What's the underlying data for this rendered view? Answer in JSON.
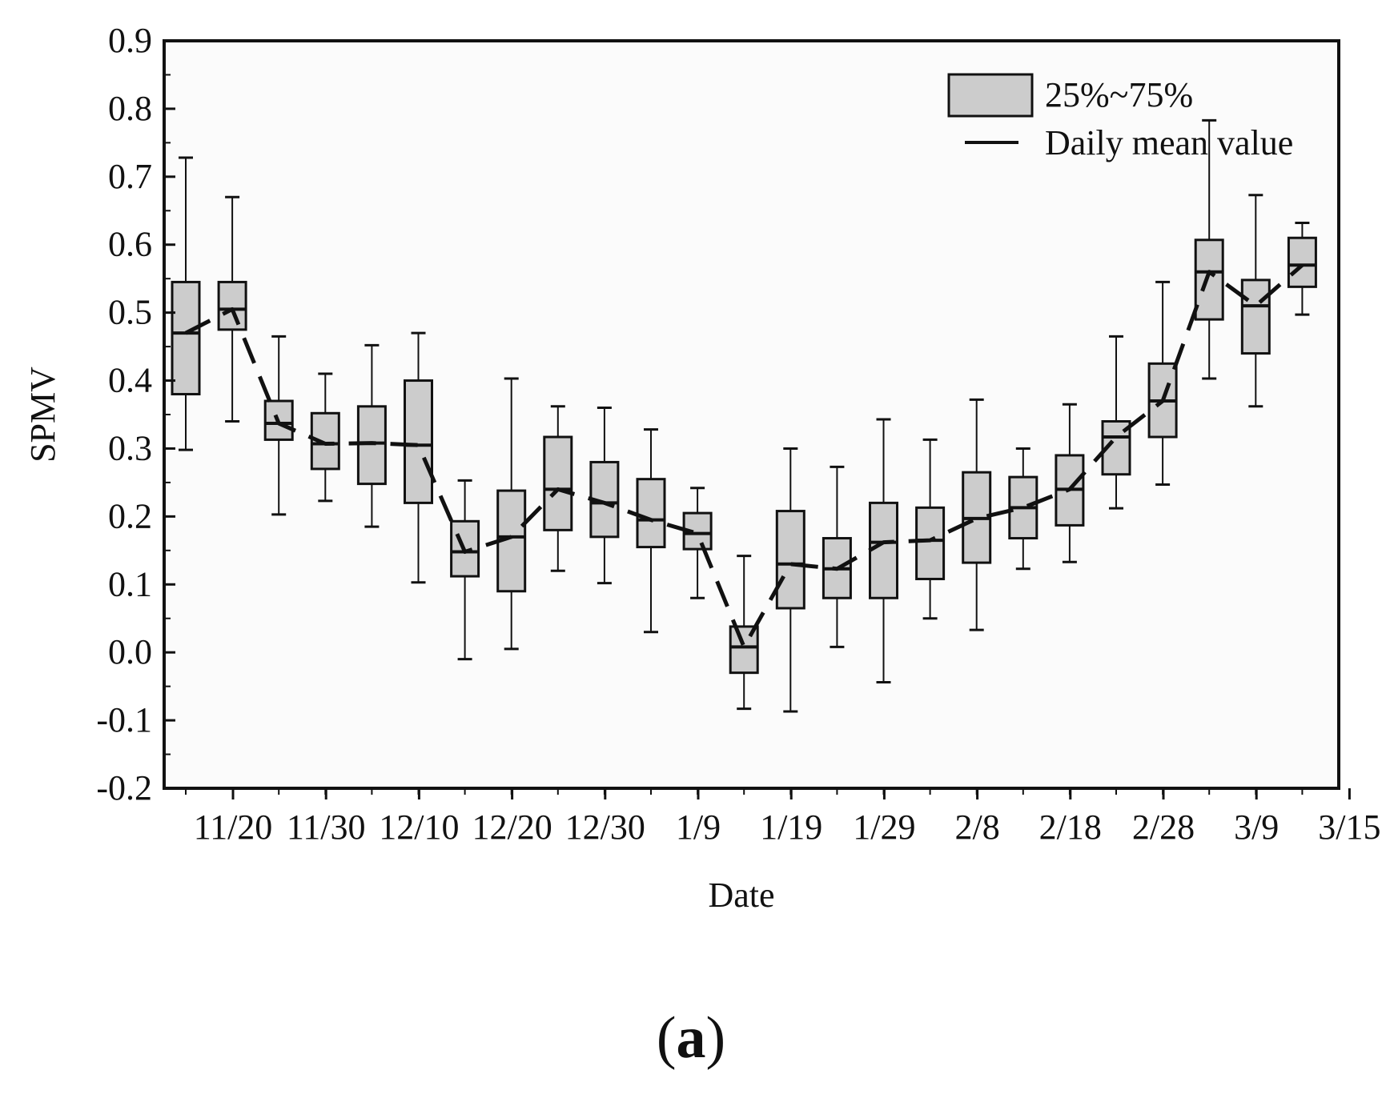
{
  "chart_data": {
    "type": "box",
    "xlabel": "Date",
    "ylabel": "SPMV",
    "ylim": [
      -0.2,
      0.9
    ],
    "yticks": [
      "0.9",
      "0.8",
      "0.7",
      "0.6",
      "0.5",
      "0.4",
      "0.3",
      "0.2",
      "0.1",
      "0.0",
      "-0.1",
      "-0.2"
    ],
    "xticks": [
      "11/20",
      "11/30",
      "12/10",
      "12/20",
      "12/30",
      "1/9",
      "1/19",
      "1/29",
      "2/8",
      "2/18",
      "2/28",
      "3/9",
      "3/15"
    ],
    "legend": {
      "box_label": "25%~75%",
      "line_label": "Daily mean value",
      "position": "top-right"
    },
    "boxes": [
      {
        "index": 0,
        "min": 0.298,
        "q1": 0.38,
        "q3": 0.545,
        "max": 0.728,
        "mean": 0.47
      },
      {
        "index": 1,
        "min": 0.34,
        "q1": 0.475,
        "q3": 0.545,
        "max": 0.67,
        "mean": 0.505
      },
      {
        "index": 2,
        "min": 0.203,
        "q1": 0.313,
        "q3": 0.37,
        "max": 0.465,
        "mean": 0.337
      },
      {
        "index": 3,
        "min": 0.223,
        "q1": 0.27,
        "q3": 0.352,
        "max": 0.41,
        "mean": 0.307
      },
      {
        "index": 4,
        "min": 0.185,
        "q1": 0.248,
        "q3": 0.362,
        "max": 0.452,
        "mean": 0.308
      },
      {
        "index": 5,
        "min": 0.103,
        "q1": 0.22,
        "q3": 0.4,
        "max": 0.47,
        "mean": 0.305
      },
      {
        "index": 6,
        "min": -0.01,
        "q1": 0.112,
        "q3": 0.193,
        "max": 0.253,
        "mean": 0.148
      },
      {
        "index": 7,
        "min": 0.005,
        "q1": 0.09,
        "q3": 0.238,
        "max": 0.403,
        "mean": 0.17
      },
      {
        "index": 8,
        "min": 0.12,
        "q1": 0.18,
        "q3": 0.317,
        "max": 0.362,
        "mean": 0.24
      },
      {
        "index": 9,
        "min": 0.102,
        "q1": 0.17,
        "q3": 0.28,
        "max": 0.36,
        "mean": 0.22
      },
      {
        "index": 10,
        "min": 0.03,
        "q1": 0.155,
        "q3": 0.255,
        "max": 0.328,
        "mean": 0.195
      },
      {
        "index": 11,
        "min": 0.08,
        "q1": 0.152,
        "q3": 0.205,
        "max": 0.242,
        "mean": 0.175
      },
      {
        "index": 12,
        "min": -0.083,
        "q1": -0.03,
        "q3": 0.038,
        "max": 0.142,
        "mean": 0.008
      },
      {
        "index": 13,
        "min": -0.087,
        "q1": 0.065,
        "q3": 0.208,
        "max": 0.3,
        "mean": 0.13
      },
      {
        "index": 14,
        "min": 0.008,
        "q1": 0.08,
        "q3": 0.168,
        "max": 0.273,
        "mean": 0.123
      },
      {
        "index": 15,
        "min": -0.044,
        "q1": 0.08,
        "q3": 0.22,
        "max": 0.343,
        "mean": 0.162
      },
      {
        "index": 16,
        "min": 0.05,
        "q1": 0.108,
        "q3": 0.213,
        "max": 0.313,
        "mean": 0.165
      },
      {
        "index": 17,
        "min": 0.033,
        "q1": 0.132,
        "q3": 0.265,
        "max": 0.372,
        "mean": 0.197
      },
      {
        "index": 18,
        "min": 0.123,
        "q1": 0.168,
        "q3": 0.258,
        "max": 0.3,
        "mean": 0.213
      },
      {
        "index": 19,
        "min": 0.133,
        "q1": 0.187,
        "q3": 0.29,
        "max": 0.365,
        "mean": 0.24
      },
      {
        "index": 20,
        "min": 0.212,
        "q1": 0.262,
        "q3": 0.34,
        "max": 0.465,
        "mean": 0.317
      },
      {
        "index": 21,
        "min": 0.247,
        "q1": 0.317,
        "q3": 0.425,
        "max": 0.545,
        "mean": 0.37
      },
      {
        "index": 22,
        "min": 0.403,
        "q1": 0.49,
        "q3": 0.607,
        "max": 0.783,
        "mean": 0.56
      },
      {
        "index": 23,
        "min": 0.362,
        "q1": 0.44,
        "q3": 0.548,
        "max": 0.673,
        "mean": 0.51
      },
      {
        "index": 24,
        "min": 0.497,
        "q1": 0.538,
        "q3": 0.61,
        "max": 0.632,
        "mean": 0.57
      }
    ]
  },
  "caption": {
    "open": "(",
    "letter": "a",
    "close": ")"
  }
}
